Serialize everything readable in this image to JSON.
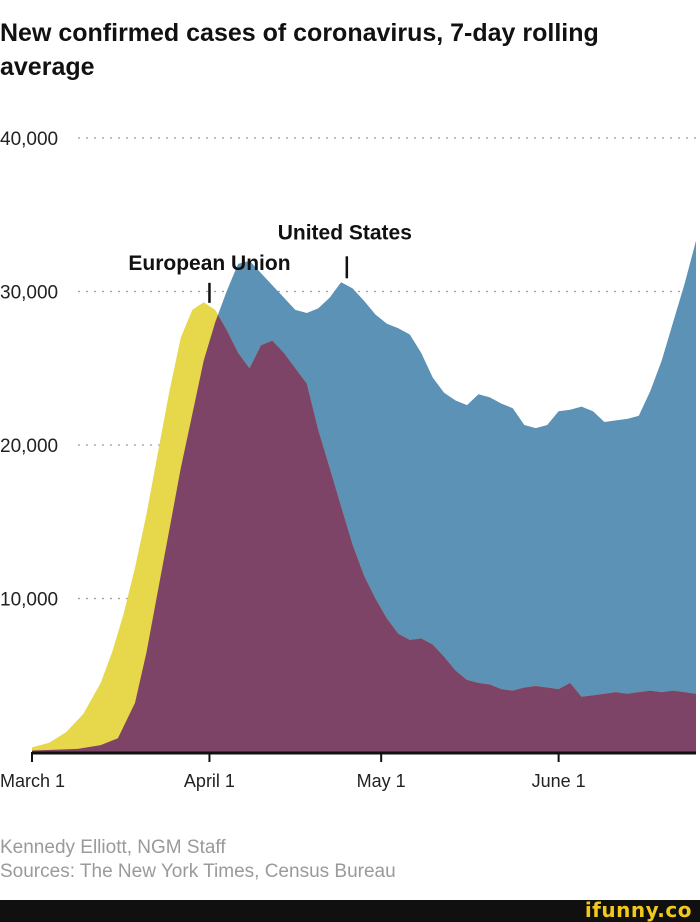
{
  "chart_data": {
    "type": "area",
    "title": "New confirmed cases of coronavirus, 7-day rolling average",
    "y_ticks": [
      {
        "value": 10000,
        "label": "10,000"
      },
      {
        "value": 20000,
        "label": "20,000"
      },
      {
        "value": 30000,
        "label": "30,000"
      },
      {
        "value": 40000,
        "label": "40,000"
      }
    ],
    "x_ticks": [
      {
        "day": 0,
        "label": "March 1"
      },
      {
        "day": 31,
        "label": "April 1"
      },
      {
        "day": 61,
        "label": "May 1"
      },
      {
        "day": 92,
        "label": "June 1"
      }
    ],
    "ylim": [
      0,
      40000
    ],
    "xlim": [
      0,
      116
    ],
    "grid": "dotted horizontal",
    "annotations": [
      {
        "text": "United States",
        "day": 55,
        "value": 30600
      },
      {
        "text": "European Union",
        "day": 31,
        "value": 29000
      }
    ],
    "series": [
      {
        "name": "United States",
        "color": "#5b92b5",
        "points": [
          [
            0,
            100
          ],
          [
            4,
            150
          ],
          [
            8,
            200
          ],
          [
            12,
            450
          ],
          [
            15,
            900
          ],
          [
            18,
            3200
          ],
          [
            20,
            6500
          ],
          [
            22,
            10500
          ],
          [
            24,
            14500
          ],
          [
            26,
            18500
          ],
          [
            28,
            22000
          ],
          [
            30,
            25500
          ],
          [
            32,
            28000
          ],
          [
            34,
            30000
          ],
          [
            36,
            31800
          ],
          [
            38,
            32000
          ],
          [
            40,
            31200
          ],
          [
            42,
            30400
          ],
          [
            44,
            29600
          ],
          [
            46,
            28800
          ],
          [
            48,
            28600
          ],
          [
            50,
            28900
          ],
          [
            52,
            29600
          ],
          [
            54,
            30600
          ],
          [
            56,
            30200
          ],
          [
            58,
            29400
          ],
          [
            60,
            28500
          ],
          [
            62,
            27900
          ],
          [
            64,
            27600
          ],
          [
            66,
            27200
          ],
          [
            68,
            26000
          ],
          [
            70,
            24400
          ],
          [
            72,
            23400
          ],
          [
            74,
            22900
          ],
          [
            76,
            22600
          ],
          [
            78,
            23300
          ],
          [
            80,
            23100
          ],
          [
            82,
            22700
          ],
          [
            84,
            22400
          ],
          [
            86,
            21300
          ],
          [
            88,
            21100
          ],
          [
            90,
            21300
          ],
          [
            92,
            22200
          ],
          [
            94,
            22300
          ],
          [
            96,
            22500
          ],
          [
            98,
            22200
          ],
          [
            100,
            21500
          ],
          [
            102,
            21600
          ],
          [
            104,
            21700
          ],
          [
            106,
            21900
          ],
          [
            108,
            23500
          ],
          [
            110,
            25500
          ],
          [
            112,
            28000
          ],
          [
            114,
            30500
          ],
          [
            116,
            33300
          ]
        ]
      },
      {
        "name": "European Union",
        "color": "#e6d84a",
        "points": [
          [
            0,
            300
          ],
          [
            3,
            600
          ],
          [
            6,
            1300
          ],
          [
            9,
            2500
          ],
          [
            12,
            4500
          ],
          [
            14,
            6500
          ],
          [
            16,
            9000
          ],
          [
            18,
            12000
          ],
          [
            20,
            15500
          ],
          [
            22,
            19500
          ],
          [
            24,
            23500
          ],
          [
            26,
            27000
          ],
          [
            28,
            28800
          ],
          [
            30,
            29300
          ],
          [
            32,
            28800
          ],
          [
            34,
            27500
          ],
          [
            36,
            26000
          ],
          [
            38,
            25000
          ],
          [
            40,
            26500
          ],
          [
            42,
            26800
          ],
          [
            44,
            26000
          ],
          [
            46,
            25000
          ],
          [
            48,
            24000
          ],
          [
            50,
            21000
          ],
          [
            52,
            18500
          ],
          [
            54,
            16000
          ],
          [
            56,
            13500
          ],
          [
            58,
            11500
          ],
          [
            60,
            10000
          ],
          [
            62,
            8700
          ],
          [
            64,
            7700
          ],
          [
            66,
            7300
          ],
          [
            68,
            7400
          ],
          [
            70,
            7000
          ],
          [
            72,
            6200
          ],
          [
            74,
            5300
          ],
          [
            76,
            4700
          ],
          [
            78,
            4500
          ],
          [
            80,
            4400
          ],
          [
            82,
            4100
          ],
          [
            84,
            4000
          ],
          [
            86,
            4200
          ],
          [
            88,
            4300
          ],
          [
            90,
            4200
          ],
          [
            92,
            4100
          ],
          [
            94,
            4500
          ],
          [
            96,
            3600
          ],
          [
            98,
            3700
          ],
          [
            100,
            3800
          ],
          [
            102,
            3900
          ],
          [
            104,
            3800
          ],
          [
            106,
            3900
          ],
          [
            108,
            4000
          ],
          [
            110,
            3900
          ],
          [
            112,
            4000
          ],
          [
            114,
            3900
          ],
          [
            116,
            3800
          ]
        ]
      }
    ]
  },
  "credit": "Kennedy Elliott, NGM Staff",
  "source": "Sources: The New York Times, Census Bureau",
  "watermark": "ifunny.co",
  "colors": {
    "overlap": "#7d4468",
    "axis": "#111111",
    "grid": "#9a9a9a"
  }
}
